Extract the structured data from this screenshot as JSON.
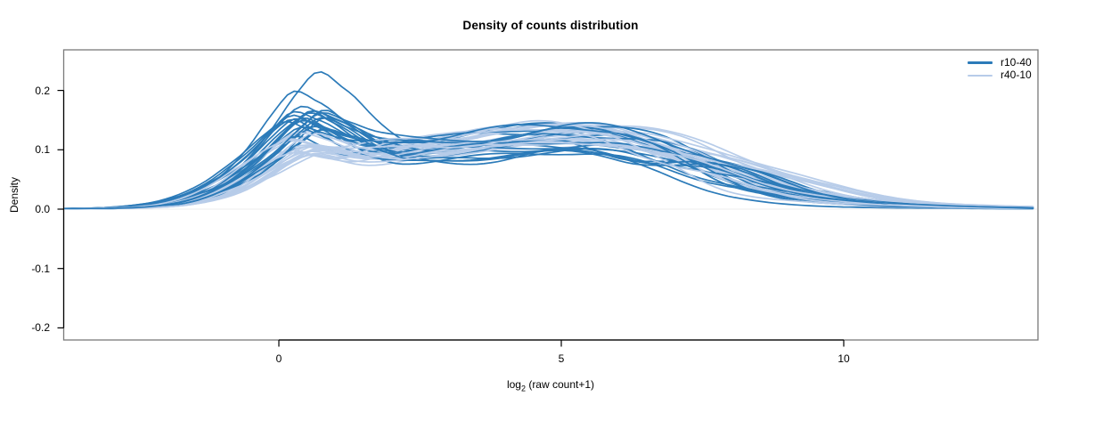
{
  "chart_data": {
    "type": "line",
    "title": "Density of counts distribution",
    "xlabel": {
      "prefix": "log",
      "sub": "2",
      "suffix": " (raw count+1)"
    },
    "ylabel": "Density",
    "xlim": [
      -3.81,
      13.43
    ],
    "ylim": [
      -0.22,
      0.268
    ],
    "xtick_labels": [
      "0",
      "5",
      "10"
    ],
    "xtick_values": [
      0,
      5,
      10
    ],
    "ytick_labels": [
      "0.2",
      "0.1",
      "0.0",
      "-0.1",
      "-0.2"
    ],
    "ytick_values": [
      0.2,
      0.1,
      0.0,
      -0.1,
      -0.2
    ],
    "grid": false,
    "legend_position": "top-right",
    "box_color": "#7a7a7a",
    "zero_line_color": "#ededed",
    "series": [
      {
        "name": "r10-40",
        "color": "#2c7bb9",
        "n_curves": 22,
        "seed": 42,
        "profile_x": [
          -3.81,
          -3,
          -2.5,
          -2,
          -1.5,
          -1,
          -0.5,
          0,
          0.35,
          0.8,
          1.3,
          1.8,
          2.3,
          3,
          3.7,
          4.4,
          5,
          5.5,
          6,
          6.5,
          7,
          7.6,
          8.2,
          9,
          9.8,
          10.8,
          12,
          13.43
        ],
        "profile_y": [
          0.0008,
          0.002,
          0.005,
          0.011,
          0.024,
          0.046,
          0.082,
          0.128,
          0.152,
          0.136,
          0.114,
          0.104,
          0.103,
          0.108,
          0.114,
          0.121,
          0.124,
          0.122,
          0.114,
          0.1,
          0.082,
          0.06,
          0.042,
          0.024,
          0.013,
          0.006,
          0.003,
          0.0015
        ],
        "variation": {
          "peak1": [
            0.8,
            1.12
          ],
          "outlier_peaks": [
            1.52,
            1.3
          ],
          "bump2": [
            0.72,
            1.18
          ],
          "tail": [
            0.5,
            1.5
          ],
          "shift": [
            -0.3,
            0.45
          ],
          "wiggle": 0.007
        }
      },
      {
        "name": "r40-10",
        "color": "#b7cce9",
        "n_curves": 22,
        "seed": 7,
        "profile_x": [
          -3.81,
          -3,
          -2.5,
          -2,
          -1.5,
          -1,
          -0.5,
          0,
          0.35,
          0.8,
          1.3,
          1.8,
          2.3,
          3,
          3.7,
          4.4,
          5,
          5.5,
          6,
          6.5,
          7,
          7.6,
          8.2,
          9,
          9.8,
          10.8,
          12,
          13.43
        ],
        "profile_y": [
          0.0008,
          0.002,
          0.004,
          0.009,
          0.02,
          0.04,
          0.072,
          0.108,
          0.124,
          0.116,
          0.104,
          0.099,
          0.1,
          0.107,
          0.115,
          0.122,
          0.126,
          0.125,
          0.119,
          0.107,
          0.091,
          0.07,
          0.051,
          0.031,
          0.018,
          0.009,
          0.004,
          0.002
        ],
        "variation": {
          "peak1": [
            0.72,
            1.06
          ],
          "outlier_peaks": [],
          "bump2": [
            0.85,
            1.15
          ],
          "tail": [
            0.7,
            1.6
          ],
          "shift": [
            -0.25,
            0.5
          ],
          "wiggle": 0.006
        }
      }
    ]
  }
}
